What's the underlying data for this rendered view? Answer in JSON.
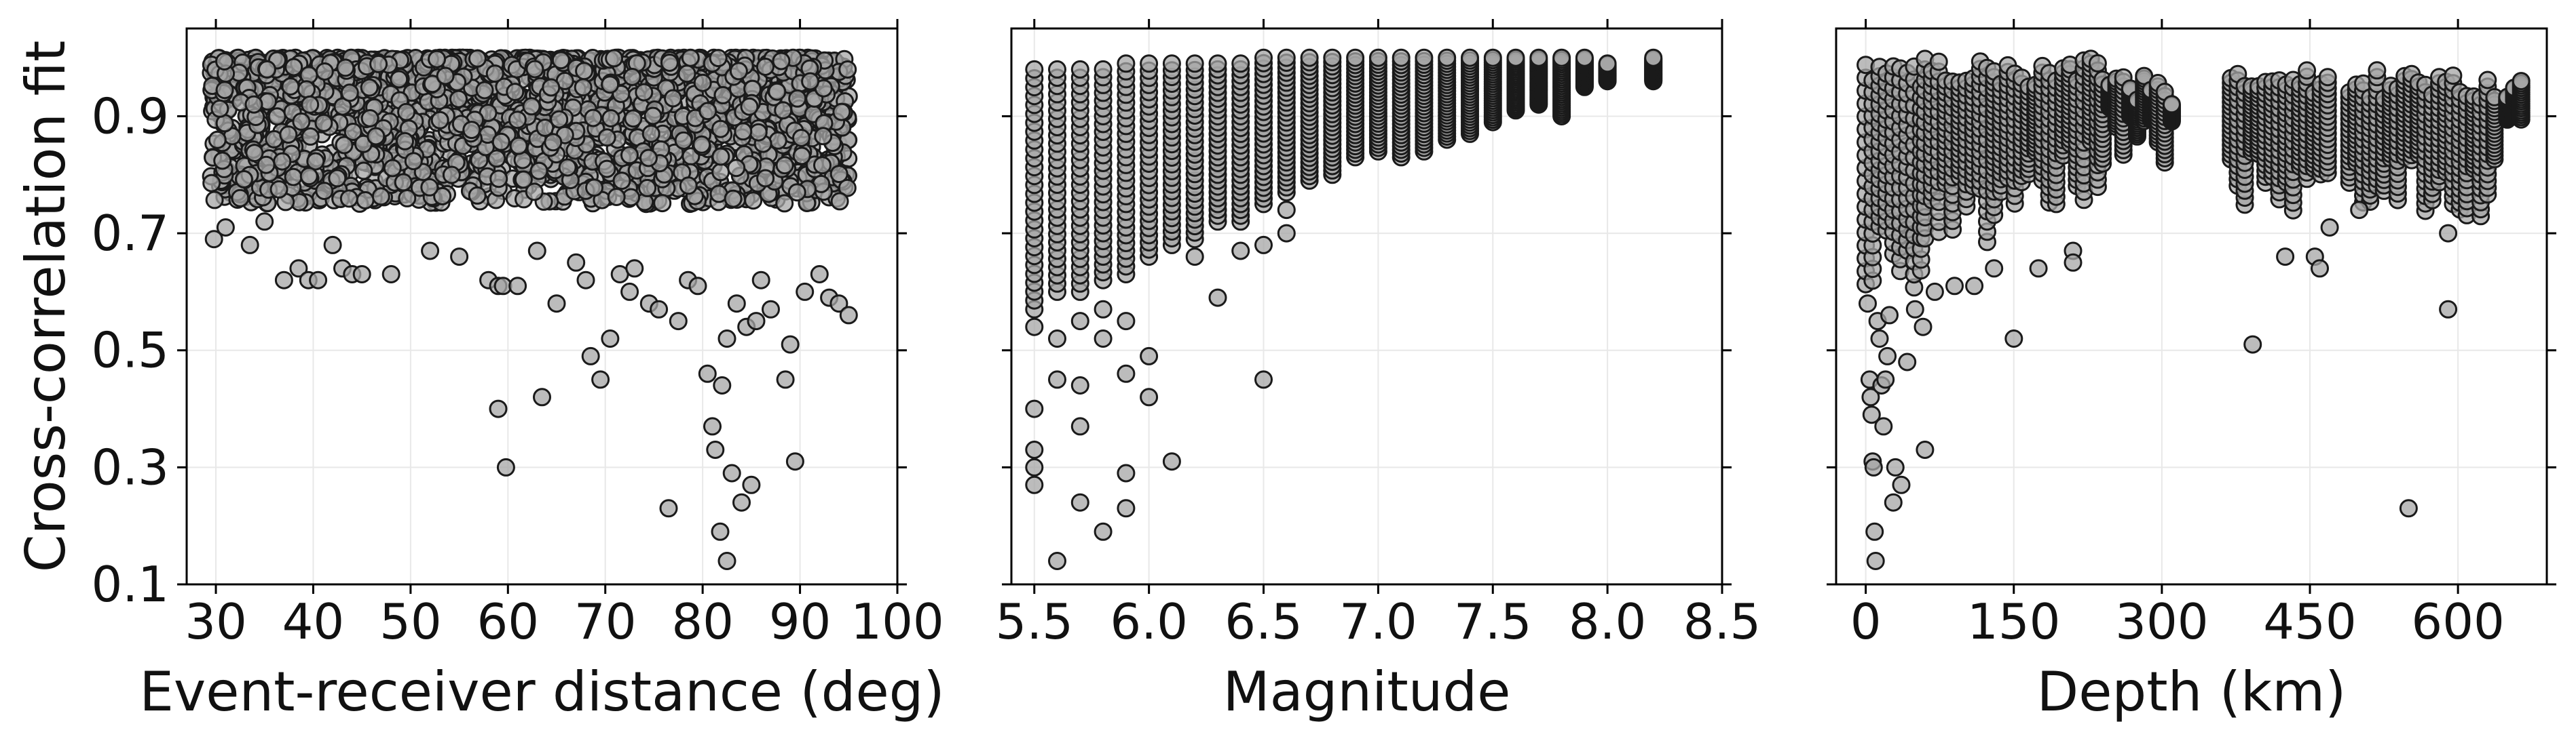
{
  "chart_data": [
    {
      "type": "scatter",
      "xlabel": "Event-receiver distance (deg)",
      "ylabel": "Cross-correlation fit",
      "xlim": [
        27,
        100
      ],
      "ylim": [
        0.1,
        1.05
      ],
      "xticks": [
        "30",
        "40",
        "50",
        "60",
        "70",
        "80",
        "90",
        "100"
      ],
      "yticks": [
        "0.1",
        "0.3",
        "0.5",
        "0.7",
        "0.9"
      ],
      "grid": true,
      "marker_color": "#a6a6a6",
      "edge_color": "#1a1a1a",
      "dense_band": {
        "x_range": [
          29.5,
          95
        ],
        "y_range": [
          0.75,
          1.0
        ]
      },
      "sparse_points": [
        [
          29.8,
          0.69
        ],
        [
          31,
          0.71
        ],
        [
          32.5,
          0.76
        ],
        [
          33.5,
          0.68
        ],
        [
          35,
          0.72
        ],
        [
          37,
          0.62
        ],
        [
          38.5,
          0.64
        ],
        [
          39.5,
          0.62
        ],
        [
          40.5,
          0.62
        ],
        [
          42,
          0.68
        ],
        [
          43,
          0.64
        ],
        [
          44,
          0.63
        ],
        [
          45,
          0.63
        ],
        [
          48,
          0.63
        ],
        [
          52,
          0.67
        ],
        [
          55,
          0.66
        ],
        [
          58,
          0.62
        ],
        [
          59,
          0.61
        ],
        [
          59.5,
          0.61
        ],
        [
          59,
          0.4
        ],
        [
          59.8,
          0.3
        ],
        [
          61,
          0.61
        ],
        [
          63,
          0.67
        ],
        [
          63.5,
          0.42
        ],
        [
          65,
          0.58
        ],
        [
          67,
          0.65
        ],
        [
          68,
          0.62
        ],
        [
          68.5,
          0.49
        ],
        [
          69.5,
          0.45
        ],
        [
          70.5,
          0.52
        ],
        [
          71.5,
          0.63
        ],
        [
          72.5,
          0.6
        ],
        [
          73,
          0.64
        ],
        [
          74.5,
          0.58
        ],
        [
          75.5,
          0.57
        ],
        [
          76.5,
          0.23
        ],
        [
          77.5,
          0.55
        ],
        [
          78.5,
          0.62
        ],
        [
          79.5,
          0.61
        ],
        [
          80.5,
          0.46
        ],
        [
          81,
          0.37
        ],
        [
          81.3,
          0.33
        ],
        [
          81.8,
          0.19
        ],
        [
          82.5,
          0.14
        ],
        [
          82,
          0.44
        ],
        [
          82.5,
          0.52
        ],
        [
          83,
          0.29
        ],
        [
          83.5,
          0.58
        ],
        [
          84,
          0.24
        ],
        [
          84.5,
          0.54
        ],
        [
          85,
          0.27
        ],
        [
          85.5,
          0.55
        ],
        [
          86,
          0.62
        ],
        [
          87,
          0.57
        ],
        [
          88.5,
          0.45
        ],
        [
          89,
          0.51
        ],
        [
          89.5,
          0.31
        ],
        [
          90.5,
          0.6
        ],
        [
          92,
          0.63
        ],
        [
          93,
          0.59
        ],
        [
          94,
          0.58
        ],
        [
          95,
          0.56
        ]
      ]
    },
    {
      "type": "scatter",
      "xlabel": "Magnitude",
      "ylabel": "",
      "xlim": [
        5.4,
        8.5
      ],
      "ylim": [
        0.1,
        1.05
      ],
      "xticks": [
        "5.5",
        "6.0",
        "6.5",
        "7.0",
        "7.5",
        "8.0",
        "8.5"
      ],
      "yticks": [],
      "grid": true,
      "marker_color": "#a6a6a6",
      "edge_color": "#1a1a1a",
      "columns": [
        [
          5.5,
          0.57,
          0.98
        ],
        [
          5.6,
          0.6,
          0.98
        ],
        [
          5.7,
          0.6,
          0.98
        ],
        [
          5.8,
          0.62,
          0.98
        ],
        [
          5.9,
          0.63,
          0.99
        ],
        [
          6.0,
          0.66,
          0.99
        ],
        [
          6.1,
          0.68,
          0.99
        ],
        [
          6.2,
          0.69,
          0.99
        ],
        [
          6.3,
          0.72,
          0.99
        ],
        [
          6.4,
          0.72,
          0.99
        ],
        [
          6.5,
          0.75,
          1.0
        ],
        [
          6.6,
          0.77,
          1.0
        ],
        [
          6.7,
          0.79,
          1.0
        ],
        [
          6.8,
          0.8,
          1.0
        ],
        [
          6.9,
          0.83,
          1.0
        ],
        [
          7.0,
          0.84,
          1.0
        ],
        [
          7.1,
          0.83,
          1.0
        ],
        [
          7.2,
          0.84,
          1.0
        ],
        [
          7.3,
          0.86,
          1.0
        ],
        [
          7.4,
          0.87,
          1.0
        ],
        [
          7.5,
          0.89,
          1.0
        ],
        [
          7.6,
          0.91,
          1.0
        ],
        [
          7.7,
          0.92,
          1.0
        ],
        [
          7.8,
          0.9,
          1.0
        ],
        [
          7.9,
          0.95,
          1.0
        ],
        [
          8.0,
          0.96,
          0.99
        ],
        [
          8.2,
          0.96,
          1.0
        ]
      ],
      "sparse_points": [
        [
          5.5,
          0.54
        ],
        [
          5.5,
          0.4
        ],
        [
          5.5,
          0.33
        ],
        [
          5.5,
          0.3
        ],
        [
          5.5,
          0.27
        ],
        [
          5.6,
          0.52
        ],
        [
          5.6,
          0.45
        ],
        [
          5.6,
          0.14
        ],
        [
          5.7,
          0.55
        ],
        [
          5.7,
          0.44
        ],
        [
          5.7,
          0.37
        ],
        [
          5.7,
          0.24
        ],
        [
          5.8,
          0.57
        ],
        [
          5.8,
          0.52
        ],
        [
          5.8,
          0.19
        ],
        [
          5.9,
          0.55
        ],
        [
          5.9,
          0.46
        ],
        [
          5.9,
          0.29
        ],
        [
          5.9,
          0.23
        ],
        [
          6.0,
          0.49
        ],
        [
          6.0,
          0.42
        ],
        [
          6.1,
          0.31
        ],
        [
          6.2,
          0.66
        ],
        [
          6.3,
          0.59
        ],
        [
          6.4,
          0.67
        ],
        [
          6.5,
          0.45
        ],
        [
          6.5,
          0.68
        ],
        [
          6.6,
          0.7
        ],
        [
          6.6,
          0.74
        ]
      ]
    },
    {
      "type": "scatter",
      "xlabel": "Depth (km)",
      "ylabel": "",
      "xlim": [
        -30,
        690
      ],
      "ylim": [
        0.1,
        1.05
      ],
      "xticks": [
        "0",
        "150",
        "300",
        "450",
        "600"
      ],
      "yticks": [],
      "grid": true,
      "marker_color": "#a6a6a6",
      "edge_color": "#1a1a1a",
      "column_groups": [
        [
          0,
          60,
          0.6,
          1.0
        ],
        [
          60,
          130,
          0.68,
          1.0
        ],
        [
          130,
          240,
          0.74,
          1.0
        ],
        [
          240,
          310,
          0.8,
          0.97
        ],
        [
          370,
          470,
          0.72,
          0.98
        ],
        [
          490,
          640,
          0.72,
          0.98
        ],
        [
          650,
          670,
          0.88,
          0.98
        ]
      ],
      "sparse_points": [
        [
          2,
          0.58
        ],
        [
          4,
          0.45
        ],
        [
          5,
          0.42
        ],
        [
          6,
          0.39
        ],
        [
          7,
          0.31
        ],
        [
          8,
          0.3
        ],
        [
          9,
          0.19
        ],
        [
          10,
          0.14
        ],
        [
          12,
          0.55
        ],
        [
          14,
          0.52
        ],
        [
          16,
          0.44
        ],
        [
          18,
          0.37
        ],
        [
          20,
          0.45
        ],
        [
          22,
          0.49
        ],
        [
          24,
          0.56
        ],
        [
          28,
          0.24
        ],
        [
          30,
          0.3
        ],
        [
          36,
          0.27
        ],
        [
          42,
          0.48
        ],
        [
          50,
          0.57
        ],
        [
          58,
          0.54
        ],
        [
          60,
          0.33
        ],
        [
          70,
          0.6
        ],
        [
          90,
          0.61
        ],
        [
          110,
          0.61
        ],
        [
          130,
          0.64
        ],
        [
          150,
          0.52
        ],
        [
          175,
          0.64
        ],
        [
          210,
          0.67
        ],
        [
          210,
          0.65
        ],
        [
          392,
          0.51
        ],
        [
          425,
          0.66
        ],
        [
          455,
          0.66
        ],
        [
          460,
          0.64
        ],
        [
          470,
          0.71
        ],
        [
          500,
          0.74
        ],
        [
          550,
          0.23
        ],
        [
          590,
          0.57
        ],
        [
          590,
          0.7
        ]
      ]
    }
  ]
}
